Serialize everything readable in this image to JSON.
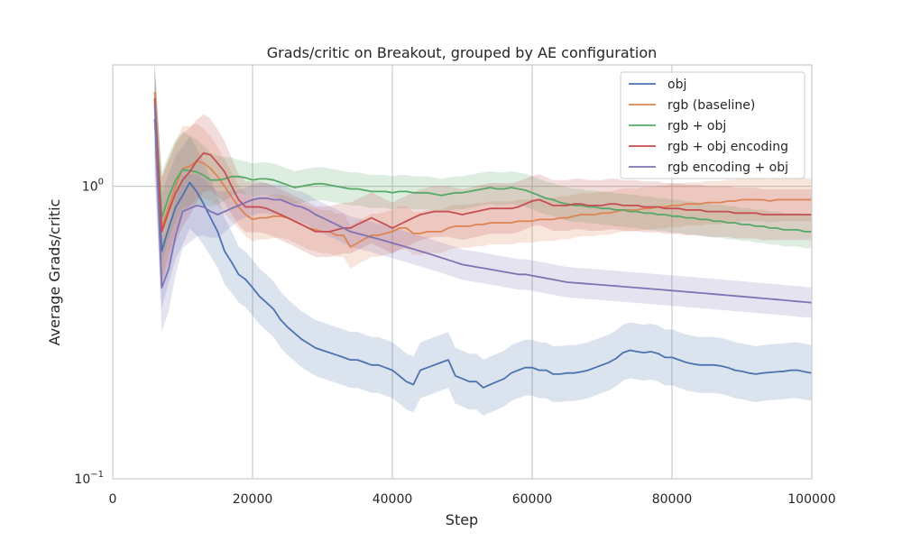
{
  "chart_data": {
    "type": "line",
    "title": "Grads/critic on Breakout, grouped by AE configuration",
    "xlabel": "Step",
    "ylabel": "Average Grads/critic",
    "xlim": [
      0,
      100000
    ],
    "ylim": [
      0.1,
      2.6
    ],
    "yscale": "log",
    "grid": true,
    "legend_position": "top-right",
    "x_ticks": [
      0,
      20000,
      40000,
      60000,
      80000,
      100000
    ],
    "x_tick_labels": [
      "0",
      "20000",
      "40000",
      "60000",
      "80000",
      "100000"
    ],
    "y_ticks": [
      {
        "value": 0.1,
        "base": "10",
        "exp": "−1"
      },
      {
        "value": 1.0,
        "base": "10",
        "exp": "0"
      }
    ],
    "series": [
      {
        "name": "obj",
        "color": "#4c72b0",
        "x": [
          6000,
          7000,
          8000,
          9000,
          10000,
          11000,
          12000,
          13000,
          14000,
          15000,
          16000,
          17000,
          18000,
          19000,
          20000,
          21000,
          22000,
          23000,
          24000,
          25000,
          26000,
          27000,
          28000,
          29000,
          30000,
          31000,
          32000,
          33000,
          34000,
          35000,
          36000,
          37000,
          38000,
          39000,
          40000,
          41000,
          42000,
          43000,
          44000,
          45000,
          46000,
          47000,
          48000,
          49000,
          50000,
          51000,
          52000,
          53000,
          54000,
          55000,
          56000,
          57000,
          58000,
          59000,
          60000,
          61000,
          62000,
          63000,
          64000,
          65000,
          66000,
          67000,
          68000,
          69000,
          70000,
          71000,
          72000,
          73000,
          74000,
          75000,
          76000,
          77000,
          78000,
          79000,
          80000,
          81000,
          82000,
          83000,
          84000,
          85000,
          86000,
          87000,
          88000,
          89000,
          90000,
          91000,
          92000,
          93000,
          94000,
          95000,
          96000,
          97000,
          98000,
          99000,
          100000
        ],
        "y": [
          1.7,
          0.6,
          0.72,
          0.85,
          0.93,
          1.03,
          0.96,
          0.87,
          0.78,
          0.7,
          0.6,
          0.55,
          0.5,
          0.48,
          0.45,
          0.42,
          0.4,
          0.38,
          0.35,
          0.33,
          0.315,
          0.3,
          0.29,
          0.28,
          0.275,
          0.27,
          0.265,
          0.26,
          0.255,
          0.255,
          0.25,
          0.245,
          0.245,
          0.24,
          0.235,
          0.225,
          0.215,
          0.21,
          0.235,
          0.24,
          0.245,
          0.25,
          0.255,
          0.225,
          0.22,
          0.215,
          0.215,
          0.205,
          0.21,
          0.215,
          0.22,
          0.23,
          0.235,
          0.24,
          0.24,
          0.235,
          0.235,
          0.228,
          0.228,
          0.23,
          0.23,
          0.232,
          0.235,
          0.24,
          0.245,
          0.25,
          0.258,
          0.27,
          0.275,
          0.272,
          0.27,
          0.272,
          0.268,
          0.26,
          0.26,
          0.255,
          0.25,
          0.247,
          0.245,
          0.245,
          0.245,
          0.243,
          0.24,
          0.235,
          0.233,
          0.23,
          0.228,
          0.23,
          0.231,
          0.232,
          0.233,
          0.235,
          0.235,
          0.232,
          0.23
        ]
      },
      {
        "name": "rgb (baseline)",
        "color": "#dd8452",
        "x": [
          6000,
          7000,
          8000,
          9000,
          10000,
          11000,
          12000,
          13000,
          14000,
          15000,
          16000,
          17000,
          18000,
          19000,
          20000,
          21000,
          22000,
          23000,
          24000,
          25000,
          26000,
          27000,
          28000,
          29000,
          30000,
          31000,
          32000,
          33000,
          34000,
          35000,
          36000,
          37000,
          38000,
          39000,
          40000,
          41000,
          42000,
          43000,
          44000,
          45000,
          46000,
          47000,
          48000,
          49000,
          50000,
          51000,
          52000,
          53000,
          54000,
          55000,
          56000,
          57000,
          58000,
          59000,
          60000,
          61000,
          62000,
          63000,
          64000,
          65000,
          66000,
          67000,
          68000,
          69000,
          70000,
          71000,
          72000,
          73000,
          74000,
          75000,
          76000,
          77000,
          78000,
          79000,
          80000,
          81000,
          82000,
          83000,
          84000,
          85000,
          86000,
          87000,
          88000,
          89000,
          90000,
          91000,
          92000,
          93000,
          94000,
          95000,
          96000,
          97000,
          98000,
          99000,
          100000
        ],
        "y": [
          2.1,
          0.72,
          0.85,
          1.0,
          1.15,
          1.17,
          1.22,
          1.2,
          1.15,
          1.08,
          1.0,
          0.92,
          0.85,
          0.8,
          0.77,
          0.78,
          0.78,
          0.79,
          0.79,
          0.78,
          0.76,
          0.74,
          0.72,
          0.71,
          0.7,
          0.7,
          0.68,
          0.68,
          0.62,
          0.64,
          0.66,
          0.68,
          0.68,
          0.69,
          0.7,
          0.72,
          0.72,
          0.69,
          0.69,
          0.7,
          0.7,
          0.7,
          0.72,
          0.73,
          0.73,
          0.73,
          0.74,
          0.74,
          0.75,
          0.75,
          0.75,
          0.75,
          0.76,
          0.76,
          0.76,
          0.77,
          0.77,
          0.77,
          0.78,
          0.78,
          0.79,
          0.8,
          0.8,
          0.8,
          0.81,
          0.81,
          0.82,
          0.83,
          0.83,
          0.83,
          0.84,
          0.84,
          0.85,
          0.85,
          0.86,
          0.86,
          0.87,
          0.87,
          0.87,
          0.88,
          0.88,
          0.88,
          0.89,
          0.89,
          0.9,
          0.9,
          0.9,
          0.9,
          0.89,
          0.9,
          0.9,
          0.9,
          0.9,
          0.9,
          0.9
        ]
      },
      {
        "name": "rgb + obj",
        "color": "#55a868",
        "x": [
          6000,
          7000,
          8000,
          9000,
          10000,
          11000,
          12000,
          13000,
          14000,
          15000,
          16000,
          17000,
          18000,
          19000,
          20000,
          21000,
          22000,
          23000,
          24000,
          25000,
          26000,
          27000,
          28000,
          29000,
          30000,
          31000,
          32000,
          33000,
          34000,
          35000,
          36000,
          37000,
          38000,
          39000,
          40000,
          41000,
          42000,
          43000,
          44000,
          45000,
          46000,
          47000,
          48000,
          49000,
          50000,
          51000,
          52000,
          53000,
          54000,
          55000,
          56000,
          57000,
          58000,
          59000,
          60000,
          61000,
          62000,
          63000,
          64000,
          65000,
          66000,
          67000,
          68000,
          69000,
          70000,
          71000,
          72000,
          73000,
          74000,
          75000,
          76000,
          77000,
          78000,
          79000,
          80000,
          81000,
          82000,
          83000,
          84000,
          85000,
          86000,
          87000,
          88000,
          89000,
          90000,
          91000,
          92000,
          93000,
          94000,
          95000,
          96000,
          97000,
          98000,
          99000,
          100000
        ],
        "y": [
          2.0,
          0.78,
          0.92,
          1.05,
          1.14,
          1.13,
          1.12,
          1.09,
          1.05,
          1.05,
          1.06,
          1.08,
          1.08,
          1.07,
          1.05,
          1.06,
          1.06,
          1.05,
          1.03,
          1.01,
          0.99,
          1.0,
          1.01,
          1.02,
          1.02,
          1.01,
          1.0,
          0.99,
          0.98,
          0.98,
          0.97,
          0.96,
          0.96,
          0.96,
          0.95,
          0.96,
          0.96,
          0.95,
          0.95,
          0.95,
          0.94,
          0.93,
          0.94,
          0.95,
          0.95,
          0.96,
          0.97,
          0.98,
          0.99,
          0.98,
          0.98,
          0.99,
          0.98,
          0.97,
          0.95,
          0.93,
          0.91,
          0.9,
          0.88,
          0.87,
          0.86,
          0.86,
          0.85,
          0.85,
          0.84,
          0.84,
          0.83,
          0.83,
          0.82,
          0.82,
          0.81,
          0.81,
          0.8,
          0.8,
          0.79,
          0.79,
          0.78,
          0.78,
          0.77,
          0.77,
          0.76,
          0.76,
          0.75,
          0.75,
          0.74,
          0.74,
          0.73,
          0.73,
          0.72,
          0.72,
          0.71,
          0.71,
          0.71,
          0.7,
          0.7
        ]
      },
      {
        "name": "rgb + obj encoding",
        "color": "#c44e52",
        "x": [
          6000,
          7000,
          8000,
          9000,
          10000,
          11000,
          12000,
          13000,
          14000,
          15000,
          16000,
          17000,
          18000,
          19000,
          20000,
          21000,
          22000,
          23000,
          24000,
          25000,
          26000,
          27000,
          28000,
          29000,
          30000,
          31000,
          32000,
          33000,
          34000,
          35000,
          36000,
          37000,
          38000,
          39000,
          40000,
          41000,
          42000,
          43000,
          44000,
          45000,
          46000,
          47000,
          48000,
          49000,
          50000,
          51000,
          52000,
          53000,
          54000,
          55000,
          56000,
          57000,
          58000,
          59000,
          60000,
          61000,
          62000,
          63000,
          64000,
          65000,
          66000,
          67000,
          68000,
          69000,
          70000,
          71000,
          72000,
          73000,
          74000,
          75000,
          76000,
          77000,
          78000,
          79000,
          80000,
          81000,
          82000,
          83000,
          84000,
          85000,
          86000,
          87000,
          88000,
          89000,
          90000,
          91000,
          92000,
          93000,
          94000,
          95000,
          96000,
          97000,
          98000,
          99000,
          100000
        ],
        "y": [
          2.0,
          0.7,
          0.82,
          0.95,
          1.05,
          1.12,
          1.22,
          1.3,
          1.28,
          1.2,
          1.12,
          1.0,
          0.9,
          0.85,
          0.85,
          0.85,
          0.84,
          0.82,
          0.8,
          0.78,
          0.76,
          0.74,
          0.72,
          0.7,
          0.7,
          0.7,
          0.71,
          0.72,
          0.72,
          0.74,
          0.76,
          0.78,
          0.76,
          0.74,
          0.72,
          0.74,
          0.76,
          0.78,
          0.8,
          0.81,
          0.82,
          0.82,
          0.82,
          0.81,
          0.8,
          0.81,
          0.82,
          0.83,
          0.84,
          0.84,
          0.84,
          0.84,
          0.85,
          0.87,
          0.89,
          0.9,
          0.88,
          0.86,
          0.86,
          0.86,
          0.87,
          0.87,
          0.86,
          0.86,
          0.86,
          0.87,
          0.87,
          0.86,
          0.86,
          0.86,
          0.85,
          0.85,
          0.85,
          0.84,
          0.84,
          0.84,
          0.83,
          0.83,
          0.83,
          0.82,
          0.82,
          0.82,
          0.82,
          0.81,
          0.81,
          0.81,
          0.81,
          0.8,
          0.8,
          0.8,
          0.8,
          0.8,
          0.8,
          0.8,
          0.8
        ]
      },
      {
        "name": "rgb encoding + obj",
        "color": "#8172b3",
        "x": [
          6000,
          7000,
          8000,
          9000,
          10000,
          11000,
          12000,
          13000,
          14000,
          15000,
          16000,
          17000,
          18000,
          19000,
          20000,
          21000,
          22000,
          23000,
          24000,
          25000,
          26000,
          27000,
          28000,
          29000,
          30000,
          31000,
          32000,
          33000,
          34000,
          35000,
          36000,
          37000,
          38000,
          39000,
          40000,
          41000,
          42000,
          43000,
          44000,
          45000,
          46000,
          47000,
          48000,
          49000,
          50000,
          51000,
          52000,
          53000,
          54000,
          55000,
          56000,
          57000,
          58000,
          59000,
          60000,
          61000,
          62000,
          63000,
          64000,
          65000,
          66000,
          67000,
          68000,
          69000,
          70000,
          71000,
          72000,
          73000,
          74000,
          75000,
          76000,
          77000,
          78000,
          79000,
          80000,
          81000,
          82000,
          83000,
          84000,
          85000,
          86000,
          87000,
          88000,
          89000,
          90000,
          91000,
          92000,
          93000,
          94000,
          95000,
          96000,
          97000,
          98000,
          99000,
          100000
        ],
        "y": [
          1.9,
          0.45,
          0.52,
          0.68,
          0.82,
          0.84,
          0.86,
          0.85,
          0.82,
          0.8,
          0.82,
          0.84,
          0.86,
          0.88,
          0.9,
          0.91,
          0.91,
          0.9,
          0.9,
          0.88,
          0.86,
          0.85,
          0.83,
          0.8,
          0.78,
          0.76,
          0.74,
          0.72,
          0.7,
          0.69,
          0.68,
          0.67,
          0.66,
          0.65,
          0.64,
          0.63,
          0.62,
          0.61,
          0.6,
          0.59,
          0.58,
          0.57,
          0.56,
          0.55,
          0.54,
          0.535,
          0.53,
          0.525,
          0.52,
          0.515,
          0.51,
          0.505,
          0.5,
          0.5,
          0.495,
          0.49,
          0.485,
          0.48,
          0.475,
          0.47,
          0.468,
          0.466,
          0.464,
          0.462,
          0.46,
          0.458,
          0.456,
          0.454,
          0.452,
          0.45,
          0.448,
          0.446,
          0.444,
          0.442,
          0.44,
          0.438,
          0.436,
          0.434,
          0.432,
          0.43,
          0.428,
          0.426,
          0.424,
          0.422,
          0.42,
          0.418,
          0.416,
          0.414,
          0.412,
          0.41,
          0.408,
          0.406,
          0.404,
          0.402,
          0.4
        ]
      }
    ]
  }
}
